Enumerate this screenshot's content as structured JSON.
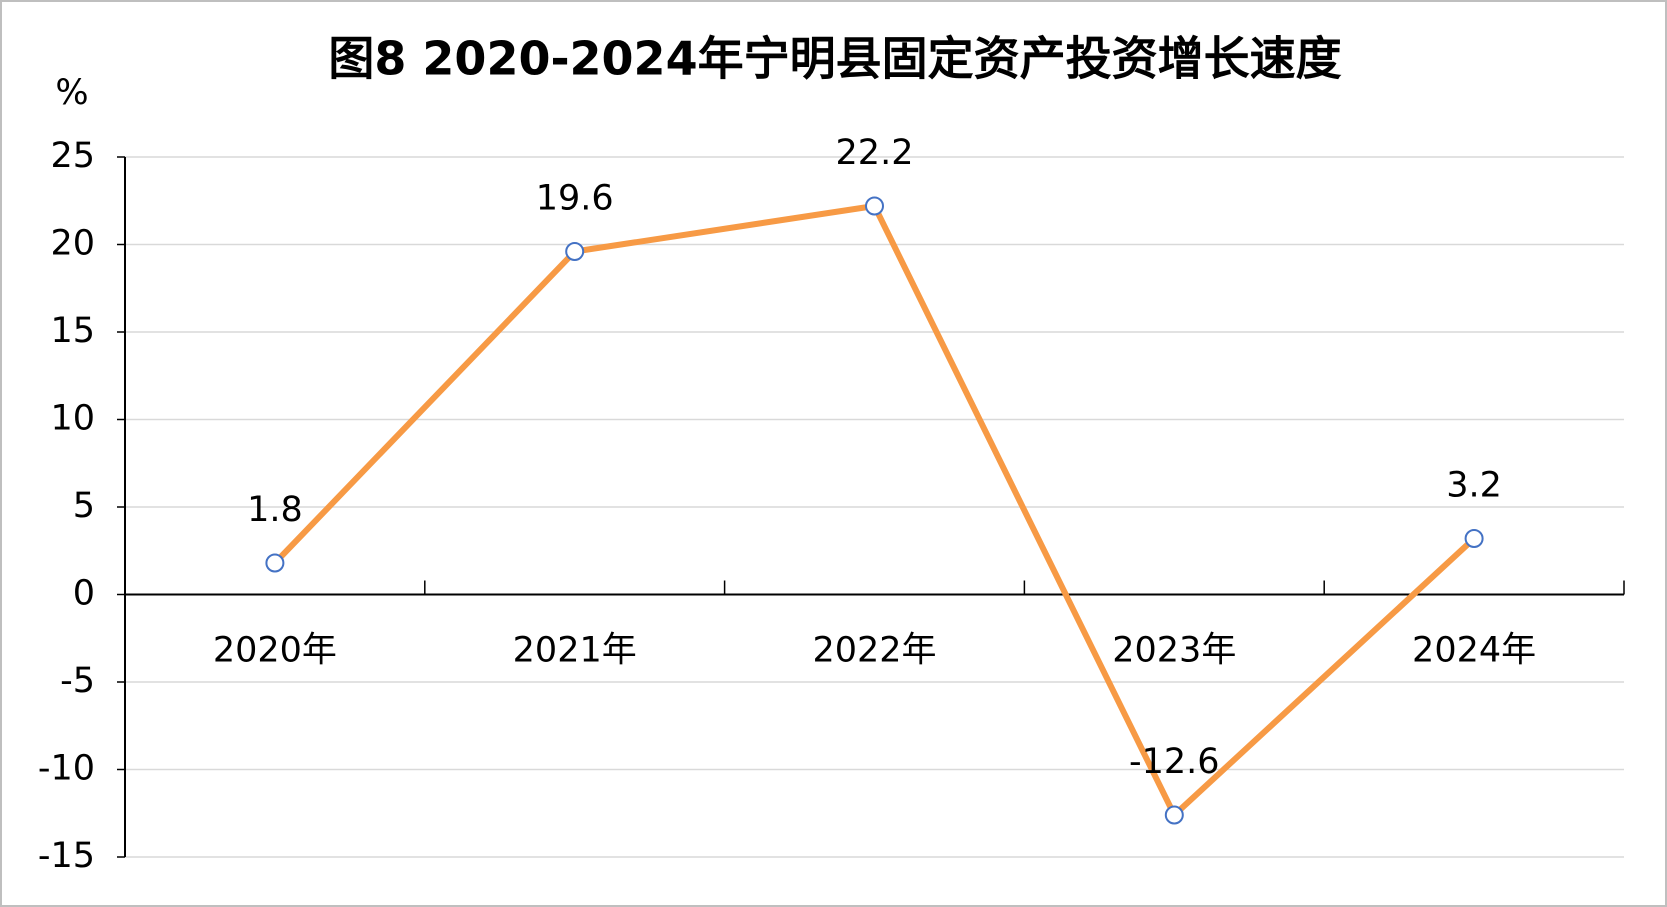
{
  "chart_data": {
    "type": "line",
    "title": "图8 2020-2024年宁明县固定资产投资增长速度",
    "y_label": "%",
    "categories": [
      "2020年",
      "2021年",
      "2022年",
      "2023年",
      "2024年"
    ],
    "values": [
      1.8,
      19.6,
      22.2,
      -12.6,
      3.2
    ],
    "color": "#f79a45",
    "marker_color": "#4472c4",
    "ylim": [
      -15,
      25
    ],
    "yticks": [
      -15,
      -10,
      -5,
      0,
      5,
      10,
      15,
      20,
      25
    ],
    "grid": true
  }
}
